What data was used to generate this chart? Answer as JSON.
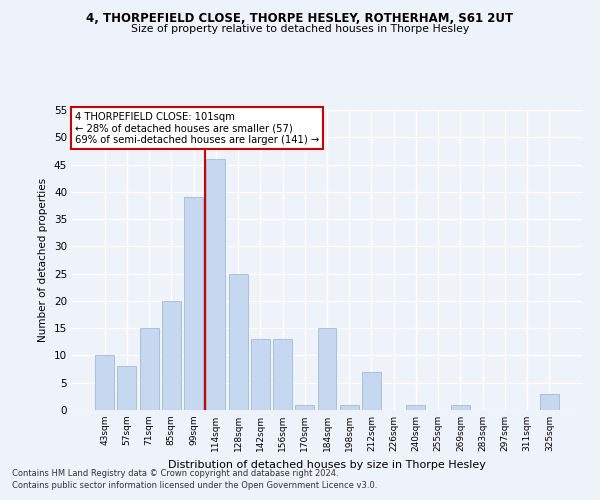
{
  "title1": "4, THORPEFIELD CLOSE, THORPE HESLEY, ROTHERHAM, S61 2UT",
  "title2": "Size of property relative to detached houses in Thorpe Hesley",
  "xlabel": "Distribution of detached houses by size in Thorpe Hesley",
  "ylabel": "Number of detached properties",
  "categories": [
    "43sqm",
    "57sqm",
    "71sqm",
    "85sqm",
    "99sqm",
    "114sqm",
    "128sqm",
    "142sqm",
    "156sqm",
    "170sqm",
    "184sqm",
    "198sqm",
    "212sqm",
    "226sqm",
    "240sqm",
    "255sqm",
    "269sqm",
    "283sqm",
    "297sqm",
    "311sqm",
    "325sqm"
  ],
  "values": [
    10,
    8,
    15,
    20,
    39,
    46,
    25,
    13,
    13,
    1,
    15,
    1,
    7,
    0,
    1,
    0,
    1,
    0,
    0,
    0,
    3
  ],
  "bar_color": "#c5d8ef",
  "bar_edge_color": "#a0bcd8",
  "annotation_line1": "4 THORPEFIELD CLOSE: 101sqm",
  "annotation_line2": "← 28% of detached houses are smaller (57)",
  "annotation_line3": "69% of semi-detached houses are larger (141) →",
  "vline_color": "#cc0000",
  "annotation_box_color": "#ffffff",
  "annotation_box_edge": "#cc0000",
  "footnote1": "Contains HM Land Registry data © Crown copyright and database right 2024.",
  "footnote2": "Contains public sector information licensed under the Open Government Licence v3.0.",
  "ylim": [
    0,
    55
  ],
  "yticks": [
    0,
    5,
    10,
    15,
    20,
    25,
    30,
    35,
    40,
    45,
    50,
    55
  ],
  "bg_color": "#eef2f9",
  "grid_color": "#ffffff",
  "vline_x": 4.5
}
